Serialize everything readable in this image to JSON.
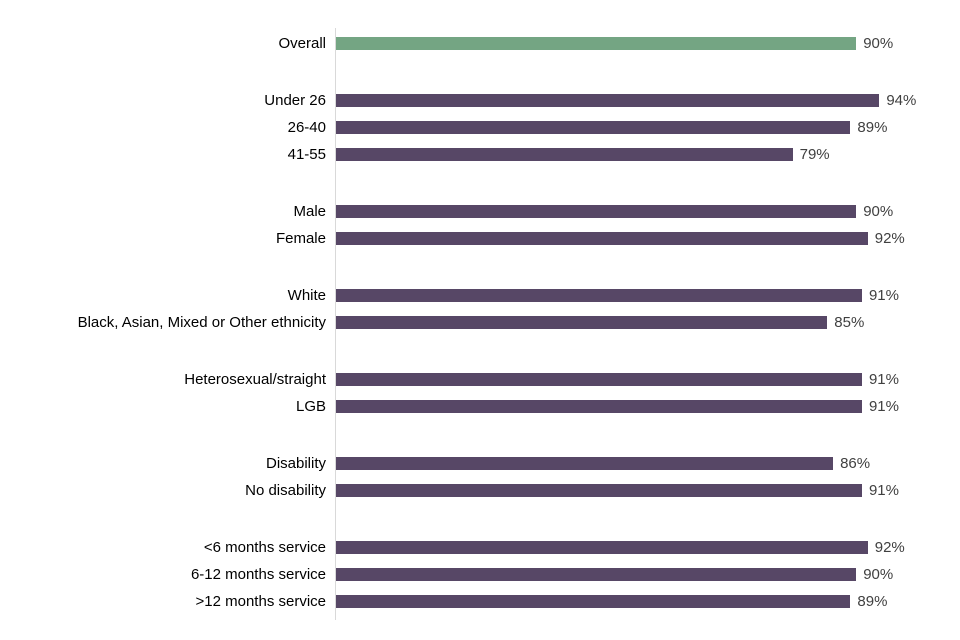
{
  "chart_data": {
    "type": "bar",
    "orientation": "horizontal",
    "title": "",
    "xlabel": "",
    "ylabel": "",
    "xlim": [
      0,
      100
    ],
    "value_suffix": "%",
    "grid": false,
    "legend": false,
    "bar_color": "#574766",
    "highlight_color": "#74a583",
    "highlight_label": "Overall",
    "axis_line_color": "#d9d9d9",
    "categories": [
      "Overall",
      "Under 26",
      "26-40",
      "41-55",
      "Male",
      "Female",
      "White",
      "Black, Asian, Mixed or Other ethnicity",
      "Heterosexual/straight",
      "LGB",
      "Disability",
      "No disability",
      "<6 months service",
      "6-12 months service",
      ">12 months service"
    ],
    "values": [
      90,
      94,
      89,
      79,
      90,
      92,
      91,
      85,
      91,
      91,
      86,
      91,
      92,
      90,
      89
    ],
    "groups": [
      {
        "rows": [
          {
            "label": "Overall",
            "value": 90
          }
        ]
      },
      {
        "rows": [
          {
            "label": "Under 26",
            "value": 94
          },
          {
            "label": "26-40",
            "value": 89
          },
          {
            "label": "41-55",
            "value": 79
          }
        ]
      },
      {
        "rows": [
          {
            "label": "Male",
            "value": 90
          },
          {
            "label": "Female",
            "value": 92
          }
        ]
      },
      {
        "rows": [
          {
            "label": "White",
            "value": 91
          },
          {
            "label": "Black, Asian, Mixed or Other ethnicity",
            "value": 85
          }
        ]
      },
      {
        "rows": [
          {
            "label": "Heterosexual/straight",
            "value": 91
          },
          {
            "label": "LGB",
            "value": 91
          }
        ]
      },
      {
        "rows": [
          {
            "label": "Disability",
            "value": 86
          },
          {
            "label": "No disability",
            "value": 91
          }
        ]
      },
      {
        "rows": [
          {
            "label": "<6 months service",
            "value": 92
          },
          {
            "label": "6-12 months service",
            "value": 90
          },
          {
            "label": ">12 months service",
            "value": 89
          }
        ]
      }
    ]
  }
}
